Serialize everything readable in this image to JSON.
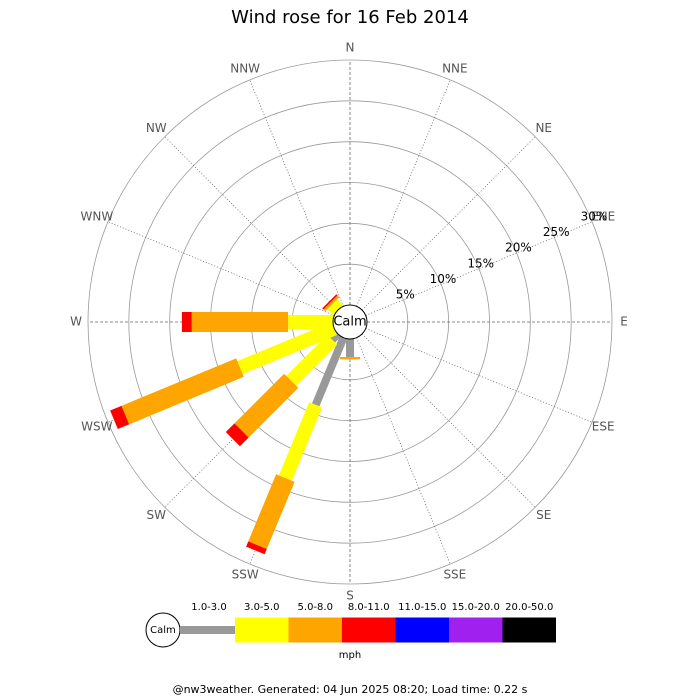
{
  "chart_data": {
    "type": "windrose",
    "title": "Wind rose for 16 Feb 2014",
    "directions": [
      "N",
      "NNE",
      "NE",
      "ENE",
      "E",
      "ESE",
      "SE",
      "SSE",
      "S",
      "SSW",
      "SW",
      "WSW",
      "W",
      "WNW",
      "NW",
      "NNW"
    ],
    "center_label": "Calm",
    "rlim": [
      0,
      30
    ],
    "rticks": [
      {
        "value": 5,
        "label": "5%"
      },
      {
        "value": 10,
        "label": "10%"
      },
      {
        "value": 15,
        "label": "15%"
      },
      {
        "value": 20,
        "label": "20%"
      },
      {
        "value": 25,
        "label": "25%"
      },
      {
        "value": 30,
        "label": "30%"
      }
    ],
    "series": [
      {
        "name": "1.0-3.0",
        "color": "#999999",
        "values": [
          0,
          0,
          0,
          0,
          0,
          0,
          0,
          0,
          2.2,
          8.9,
          1.0,
          0,
          0,
          0,
          0,
          0
        ]
      },
      {
        "name": "3.0-5.0",
        "color": "#ffff00",
        "values": [
          0,
          0,
          0,
          0,
          0,
          0,
          0,
          0,
          0,
          9.7,
          7.1,
          12.5,
          5.5,
          0,
          1.0,
          0
        ]
      },
      {
        "name": "5.0-8.0",
        "color": "#ffa500",
        "values": [
          0,
          0,
          0,
          0,
          0,
          0,
          0,
          0,
          0.3,
          8.9,
          8.6,
          15.2,
          11.8,
          0,
          0.3,
          0
        ]
      },
      {
        "name": "8.0-11.0",
        "color": "#ff0000",
        "values": [
          0,
          0,
          0,
          0,
          0,
          0,
          0,
          0,
          0,
          0.7,
          1.5,
          1.5,
          1.2,
          0,
          0.2,
          0
        ]
      },
      {
        "name": "11.0-15.0",
        "color": "#0000ff",
        "values": [
          0,
          0,
          0,
          0,
          0,
          0,
          0,
          0,
          0,
          0,
          0,
          0,
          0,
          0,
          0,
          0
        ]
      },
      {
        "name": "15.0-20.0",
        "color": "#a020f0",
        "values": [
          0,
          0,
          0,
          0,
          0,
          0,
          0,
          0,
          0,
          0,
          0,
          0,
          0,
          0,
          0,
          0
        ]
      },
      {
        "name": "20.0-50.0",
        "color": "#000000",
        "values": [
          0,
          0,
          0,
          0,
          0,
          0,
          0,
          0,
          0,
          0,
          0,
          0,
          0,
          0,
          0,
          0
        ]
      }
    ],
    "legend_unit": "mph",
    "footer": "@nw3weather. Generated: 04 Jun 2025 08:20; Load time: 0.22 s"
  }
}
